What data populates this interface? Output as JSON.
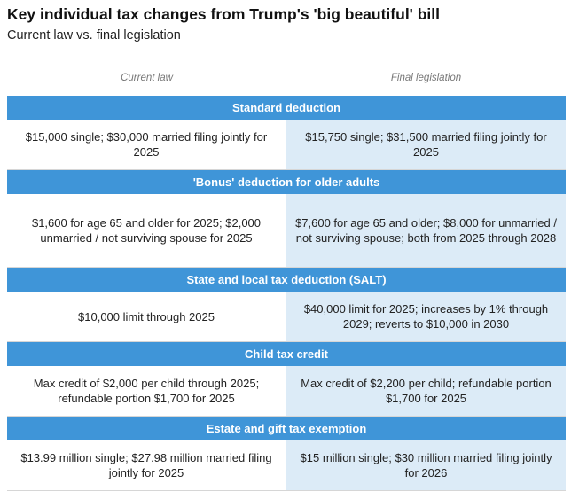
{
  "header": {
    "title": "Key individual tax changes from Trump's 'big beautiful' bill",
    "subtitle": "Current law vs. final legislation"
  },
  "columns": {
    "current": "Current law",
    "final": "Final legislation"
  },
  "sections": [
    {
      "heading": "Standard deduction",
      "current": "$15,000 single; $30,000 married filing jointly for 2025",
      "final": "$15,750 single; $31,500 married filing jointly for 2025"
    },
    {
      "heading": "'Bonus' deduction for older adults",
      "current": "$1,600 for age 65 and older for 2025; $2,000 unmarried / not surviving spouse for 2025",
      "final": "$7,600 for age 65 and older; $8,000 for unmarried / not surviving spouse; both from 2025 through 2028"
    },
    {
      "heading": "State and local tax deduction (SALT)",
      "current": "$10,000 limit through 2025",
      "final": "$40,000 limit for 2025; increases by 1% through 2029; reverts to $10,000 in 2030"
    },
    {
      "heading": "Child tax credit",
      "current": "Max credit of $2,000 per child through 2025; refundable portion $1,700 for 2025",
      "final": "Max credit of $2,200 per child; refundable portion $1,700 for 2025"
    },
    {
      "heading": "Estate and gift tax exemption",
      "current": "$13.99 million single; $27.98 million married filing jointly for 2025",
      "final": "$15 million single; $30 million married filing jointly for 2026"
    }
  ],
  "colors": {
    "header_bar": "#3f95d8",
    "final_column_bg": "#dcebf7"
  }
}
